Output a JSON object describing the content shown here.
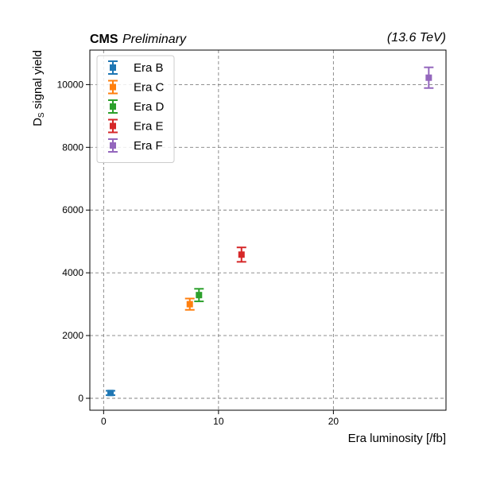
{
  "header": {
    "experiment": "CMS",
    "status": "Preliminary",
    "energy": "(13.6 TeV)"
  },
  "chart_data": {
    "type": "scatter",
    "xlabel": "Era luminosity [/fb]",
    "ylabel_main": "D",
    "ylabel_sub": "S",
    "ylabel_rest": " signal yield",
    "xlim": [
      -1.2,
      29.8
    ],
    "ylim": [
      -380,
      11100
    ],
    "xticks": [
      0,
      10,
      20
    ],
    "yticks": [
      0,
      2000,
      4000,
      6000,
      8000,
      10000
    ],
    "grid": true,
    "legend_position": "top-left",
    "series": [
      {
        "name": "Era B",
        "color": "#1f77b4",
        "x": 0.6,
        "y": 170,
        "yerr": 70
      },
      {
        "name": "Era C",
        "color": "#ff7f0e",
        "x": 7.5,
        "y": 3000,
        "yerr": 180
      },
      {
        "name": "Era D",
        "color": "#2ca02c",
        "x": 8.3,
        "y": 3290,
        "yerr": 200
      },
      {
        "name": "Era E",
        "color": "#d62728",
        "x": 12.0,
        "y": 4580,
        "yerr": 230
      },
      {
        "name": "Era F",
        "color": "#9467bd",
        "x": 28.3,
        "y": 10220,
        "yerr": 330
      }
    ]
  }
}
